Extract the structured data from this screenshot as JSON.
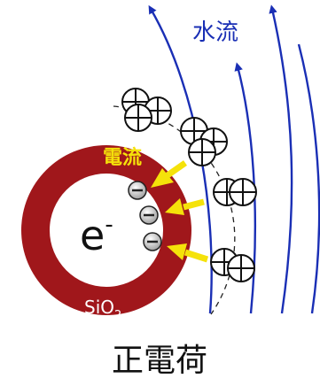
{
  "labels": {
    "water_flow": "水流",
    "current": "電流",
    "electron": "e",
    "electron_sup": "-",
    "shell_material": "SiO",
    "shell_material_sub": "2",
    "caption": "正電荷"
  },
  "colors": {
    "shell": "#a0171b",
    "flow": "#1a2fb5",
    "current": "#f5e20a",
    "arrow_stroke": "#f5e20a",
    "text": "#111111"
  }
}
